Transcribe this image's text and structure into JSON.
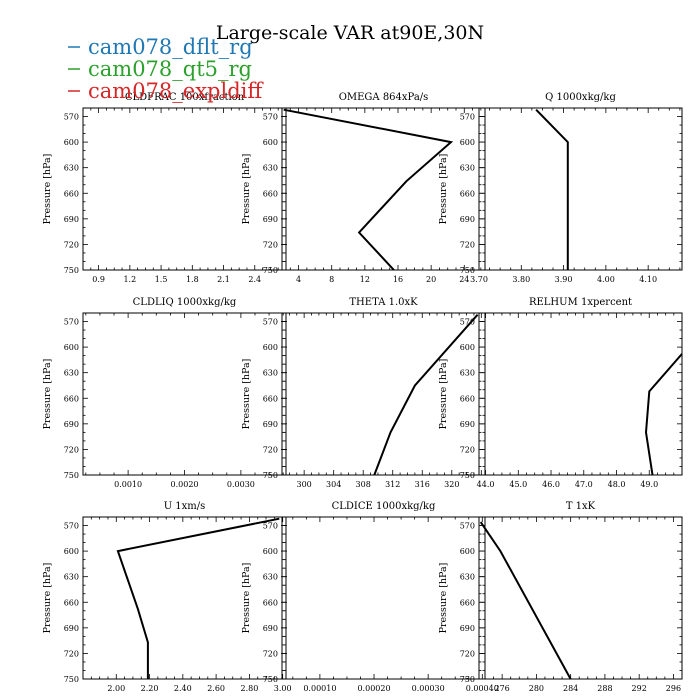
{
  "figure": {
    "title": "Large-scale VAR at90E,30N",
    "legend": [
      {
        "label": "cam078_dflt_rg",
        "color": "#1f77b4"
      },
      {
        "label": "cam078_qt5_rg",
        "color": "#2ca02c"
      },
      {
        "label": "cam078_expldiff",
        "color": "#d62728"
      }
    ]
  },
  "chart_data": [
    {
      "type": "line",
      "title": "CLDFRAC 100xfraction",
      "ylabel": "Pressure [hPa]",
      "ylim": [
        750,
        560
      ],
      "yticks": [
        570,
        600,
        630,
        660,
        690,
        720,
        750
      ],
      "xlim": [
        0.75,
        2.7
      ],
      "xticks": [
        0.9,
        1.2,
        1.5,
        1.8,
        2.1,
        2.4
      ],
      "xtick_labels": [
        "0.9",
        "1.2",
        "1.5",
        "1.8",
        "2.1",
        "2.4"
      ],
      "series": [
        {
          "color": "#000000",
          "points": []
        }
      ]
    },
    {
      "type": "line",
      "title": "OMEGA  864xPa/s",
      "ylabel": "Pressure [hPa]",
      "ylim": [
        750,
        560
      ],
      "yticks": [
        570,
        600,
        630,
        660,
        690,
        720,
        750
      ],
      "xlim": [
        2,
        26.5
      ],
      "xticks": [
        4,
        8,
        12,
        16,
        20,
        24
      ],
      "xtick_labels": [
        "4",
        "8",
        "12",
        "16",
        "20",
        "24"
      ],
      "series": [
        {
          "color": "#000000",
          "points": [
            [
              2.2,
              562
            ],
            [
              22.4,
              600
            ],
            [
              17.0,
              646
            ],
            [
              11.3,
              706
            ],
            [
              15.5,
              750
            ]
          ]
        }
      ]
    },
    {
      "type": "line",
      "title": "Q  1000xkg/kg",
      "ylabel": "Pressure [hPa]",
      "ylim": [
        750,
        560
      ],
      "yticks": [
        570,
        600,
        630,
        660,
        690,
        720,
        750
      ],
      "xlim": [
        3.7,
        4.18
      ],
      "xticks": [
        3.7,
        3.8,
        3.9,
        4.0,
        4.1
      ],
      "xtick_labels": [
        "3.70",
        "3.80",
        "3.90",
        "4.00",
        "4.10"
      ],
      "series": [
        {
          "color": "#000000",
          "points": [
            [
              3.835,
              562
            ],
            [
              3.91,
              600
            ],
            [
              3.91,
              750
            ]
          ]
        }
      ]
    },
    {
      "type": "line",
      "title": "CLDLIQ  1000xkg/kg",
      "ylabel": "Pressure [hPa]",
      "ylim": [
        750,
        560
      ],
      "yticks": [
        570,
        600,
        630,
        660,
        690,
        720,
        750
      ],
      "xlim": [
        0.0002,
        0.0038
      ],
      "xticks": [
        0.001,
        0.002,
        0.003
      ],
      "xtick_labels": [
        "0.0010",
        "0.0020",
        "0.0030"
      ],
      "series": [
        {
          "color": "#000000",
          "points": []
        }
      ]
    },
    {
      "type": "line",
      "title": "THETA  1.0xK",
      "ylabel": "Pressure [hPa]",
      "ylim": [
        750,
        560
      ],
      "yticks": [
        570,
        600,
        630,
        660,
        690,
        720,
        750
      ],
      "xlim": [
        297,
        324.5
      ],
      "xticks": [
        300,
        304,
        308,
        312,
        316,
        320
      ],
      "xtick_labels": [
        "300",
        "304",
        "308",
        "312",
        "316",
        "320"
      ],
      "series": [
        {
          "color": "#000000",
          "points": [
            [
              323.5,
              562
            ],
            [
              315.0,
              645
            ],
            [
              311.7,
              700
            ],
            [
              309.5,
              750
            ]
          ]
        }
      ]
    },
    {
      "type": "line",
      "title": "RELHUM  1xpercent",
      "ylabel": "Pressure [hPa]",
      "ylim": [
        750,
        560
      ],
      "yticks": [
        570,
        600,
        630,
        660,
        690,
        720,
        750
      ],
      "xlim": [
        43.8,
        50
      ],
      "xticks": [
        44,
        45,
        46,
        47,
        48,
        49
      ],
      "xtick_labels": [
        "44.0",
        "45.0",
        "46.0",
        "47.0",
        "48.0",
        "49.0"
      ],
      "series": [
        {
          "color": "#000000",
          "points": [
            [
              50.0,
              608
            ],
            [
              49.0,
              652
            ],
            [
              48.9,
              700
            ],
            [
              49.1,
              750
            ]
          ]
        }
      ]
    },
    {
      "type": "line",
      "title": "U  1xm/s",
      "ylabel": "Pressure [hPa]",
      "ylim": [
        750,
        560
      ],
      "yticks": [
        570,
        600,
        630,
        660,
        690,
        720,
        750
      ],
      "xlim": [
        1.8,
        3.02
      ],
      "xticks": [
        2.0,
        2.2,
        2.4,
        2.6,
        2.8,
        3.0
      ],
      "xtick_labels": [
        "2.00",
        "2.20",
        "2.40",
        "2.60",
        "2.80",
        "3.00"
      ],
      "series": [
        {
          "color": "#000000",
          "points": [
            [
              2.98,
              562
            ],
            [
              2.01,
              600
            ],
            [
              2.13,
              668
            ],
            [
              2.19,
              707
            ],
            [
              2.19,
              750
            ]
          ]
        }
      ]
    },
    {
      "type": "line",
      "title": "CLDICE  1000xkg/kg",
      "ylabel": "Pressure [hPa]",
      "ylim": [
        750,
        560
      ],
      "yticks": [
        570,
        600,
        630,
        660,
        690,
        720,
        750
      ],
      "xlim": [
        3e-05,
        0.000405
      ],
      "xticks": [
        0.0001,
        0.0002,
        0.0003,
        0.0004
      ],
      "xtick_labels": [
        "0.00010",
        "0.00020",
        "0.00030",
        "0.00040"
      ],
      "series": [
        {
          "color": "#000000",
          "points": []
        }
      ]
    },
    {
      "type": "line",
      "title": "T  1xK",
      "ylabel": "Pressure [hPa]",
      "ylim": [
        750,
        560
      ],
      "yticks": [
        570,
        600,
        630,
        660,
        690,
        720,
        750
      ],
      "xlim": [
        273.3,
        297
      ],
      "xticks": [
        276,
        280,
        284,
        288,
        292,
        296
      ],
      "xtick_labels": [
        "276",
        "280",
        "284",
        "288",
        "292",
        "296"
      ],
      "series": [
        {
          "color": "#000000",
          "points": [
            [
              273.5,
              566
            ],
            [
              275.8,
              600
            ],
            [
              284.0,
              750
            ]
          ]
        }
      ]
    }
  ]
}
